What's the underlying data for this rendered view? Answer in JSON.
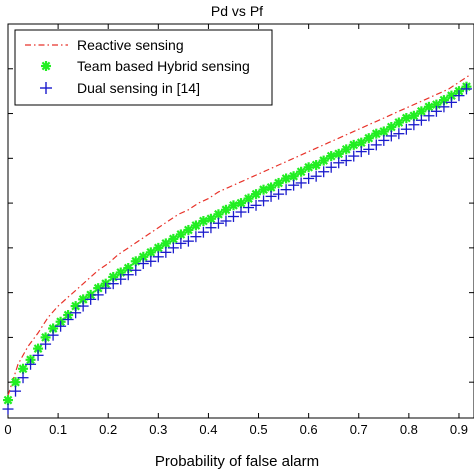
{
  "chart_data": {
    "type": "scatter",
    "title": "Pd vs Pf",
    "xlabel": "Probability of false alarm",
    "ylabel": "",
    "xlim": [
      0,
      0.93
    ],
    "ylim": [
      0.12,
      1.0
    ],
    "x_ticks": [
      0,
      0.1,
      0.2,
      0.3,
      0.4,
      0.5,
      0.6,
      0.7,
      0.8,
      0.9
    ],
    "x_tick_labels": [
      "0",
      "0.1",
      "0.2",
      "0.3",
      "0.4",
      "0.5",
      "0.6",
      "0.7",
      "0.8",
      "0.9"
    ],
    "y_ticks": [
      0.2,
      0.3,
      0.4,
      0.5,
      0.6,
      0.7,
      0.8,
      0.9
    ],
    "y_tick_labels": [
      "",
      "",
      "",
      "",
      "",
      "",
      "",
      ""
    ],
    "grid": false,
    "legend_position": "top-left",
    "series": [
      {
        "name": "Reactive sensing",
        "style": "dash-dot",
        "color": "#e8332a",
        "x": [
          0,
          0.02,
          0.04,
          0.06,
          0.08,
          0.1,
          0.12,
          0.14,
          0.16,
          0.18,
          0.2,
          0.22,
          0.24,
          0.26,
          0.28,
          0.3,
          0.32,
          0.34,
          0.36,
          0.38,
          0.4,
          0.42,
          0.44,
          0.46,
          0.48,
          0.5,
          0.52,
          0.54,
          0.56,
          0.58,
          0.6,
          0.62,
          0.64,
          0.66,
          0.68,
          0.7,
          0.72,
          0.74,
          0.76,
          0.78,
          0.8,
          0.82,
          0.84,
          0.86,
          0.88,
          0.9,
          0.92
        ],
        "y": [
          0.17,
          0.24,
          0.28,
          0.31,
          0.345,
          0.37,
          0.39,
          0.41,
          0.43,
          0.45,
          0.465,
          0.485,
          0.5,
          0.515,
          0.53,
          0.545,
          0.56,
          0.575,
          0.585,
          0.6,
          0.61,
          0.625,
          0.635,
          0.645,
          0.655,
          0.665,
          0.675,
          0.685,
          0.695,
          0.705,
          0.715,
          0.725,
          0.735,
          0.745,
          0.755,
          0.765,
          0.775,
          0.785,
          0.795,
          0.805,
          0.815,
          0.825,
          0.835,
          0.845,
          0.855,
          0.87,
          0.885
        ]
      },
      {
        "name": "Team based Hybrid sensing",
        "marker": "*",
        "color": "#22ee22",
        "x": [
          0,
          0.015,
          0.03,
          0.045,
          0.06,
          0.075,
          0.09,
          0.105,
          0.12,
          0.135,
          0.15,
          0.165,
          0.18,
          0.195,
          0.21,
          0.225,
          0.24,
          0.255,
          0.27,
          0.285,
          0.3,
          0.315,
          0.33,
          0.345,
          0.36,
          0.375,
          0.39,
          0.405,
          0.42,
          0.435,
          0.45,
          0.465,
          0.48,
          0.495,
          0.51,
          0.525,
          0.54,
          0.555,
          0.57,
          0.585,
          0.6,
          0.615,
          0.63,
          0.645,
          0.66,
          0.675,
          0.69,
          0.705,
          0.72,
          0.735,
          0.75,
          0.765,
          0.78,
          0.795,
          0.81,
          0.825,
          0.84,
          0.855,
          0.87,
          0.885,
          0.9,
          0.915
        ],
        "y": [
          0.16,
          0.2,
          0.23,
          0.25,
          0.275,
          0.3,
          0.32,
          0.335,
          0.35,
          0.37,
          0.385,
          0.395,
          0.41,
          0.42,
          0.435,
          0.445,
          0.455,
          0.47,
          0.48,
          0.49,
          0.5,
          0.51,
          0.52,
          0.53,
          0.54,
          0.55,
          0.56,
          0.565,
          0.575,
          0.585,
          0.595,
          0.6,
          0.61,
          0.62,
          0.63,
          0.635,
          0.645,
          0.655,
          0.66,
          0.67,
          0.68,
          0.685,
          0.695,
          0.705,
          0.71,
          0.72,
          0.73,
          0.735,
          0.745,
          0.755,
          0.76,
          0.77,
          0.78,
          0.79,
          0.795,
          0.805,
          0.815,
          0.82,
          0.83,
          0.84,
          0.85,
          0.86
        ]
      },
      {
        "name": "Dual sensing in [14]",
        "marker": "+",
        "color": "#1a1acc",
        "x": [
          0,
          0.015,
          0.03,
          0.045,
          0.06,
          0.075,
          0.09,
          0.105,
          0.12,
          0.135,
          0.15,
          0.165,
          0.18,
          0.195,
          0.21,
          0.225,
          0.24,
          0.255,
          0.27,
          0.285,
          0.3,
          0.315,
          0.33,
          0.345,
          0.36,
          0.375,
          0.39,
          0.405,
          0.42,
          0.435,
          0.45,
          0.465,
          0.48,
          0.495,
          0.51,
          0.525,
          0.54,
          0.555,
          0.57,
          0.585,
          0.6,
          0.615,
          0.63,
          0.645,
          0.66,
          0.675,
          0.69,
          0.705,
          0.72,
          0.735,
          0.75,
          0.765,
          0.78,
          0.795,
          0.81,
          0.825,
          0.84,
          0.855,
          0.87,
          0.885,
          0.9,
          0.915
        ],
        "y": [
          0.14,
          0.18,
          0.21,
          0.24,
          0.26,
          0.285,
          0.305,
          0.325,
          0.34,
          0.355,
          0.37,
          0.385,
          0.395,
          0.41,
          0.42,
          0.43,
          0.44,
          0.45,
          0.465,
          0.47,
          0.48,
          0.49,
          0.5,
          0.51,
          0.515,
          0.525,
          0.535,
          0.545,
          0.555,
          0.56,
          0.57,
          0.58,
          0.59,
          0.595,
          0.605,
          0.615,
          0.62,
          0.63,
          0.64,
          0.645,
          0.655,
          0.66,
          0.67,
          0.68,
          0.69,
          0.695,
          0.705,
          0.715,
          0.72,
          0.73,
          0.74,
          0.75,
          0.755,
          0.765,
          0.775,
          0.785,
          0.795,
          0.805,
          0.815,
          0.825,
          0.84,
          0.855
        ]
      }
    ]
  }
}
